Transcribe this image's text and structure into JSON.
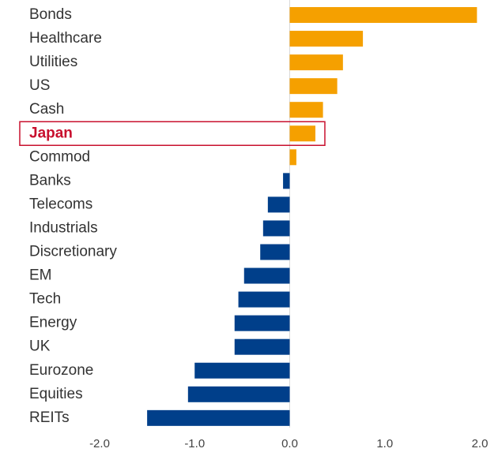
{
  "chart_data": {
    "type": "bar",
    "orientation": "horizontal",
    "title": "",
    "xlabel": "",
    "ylabel": "",
    "categories": [
      "Bonds",
      "Healthcare",
      "Utilities",
      "US",
      "Cash",
      "Japan",
      "Commod",
      "Banks",
      "Telecoms",
      "Industrials",
      "Discretionary",
      "EM",
      "Tech",
      "Energy",
      "UK",
      "Eurozone",
      "Equities",
      "REITs"
    ],
    "values": [
      1.97,
      0.77,
      0.56,
      0.5,
      0.35,
      0.27,
      0.07,
      -0.07,
      -0.23,
      -0.28,
      -0.31,
      -0.48,
      -0.54,
      -0.58,
      -0.58,
      -1.0,
      -1.07,
      -1.5
    ],
    "xlim": [
      -2.0,
      2.0
    ],
    "xticks": [
      -2.0,
      -1.0,
      0.0,
      1.0,
      2.0
    ],
    "xtick_labels": [
      "-2.0",
      "-1.0",
      "0.0",
      "1.0",
      "2.0"
    ],
    "grid": false,
    "highlighted_category": "Japan",
    "colors": {
      "positive": "#f5a000",
      "negative": "#003f8a",
      "highlight": "#c8102e",
      "zero_line": "#d9d9d9"
    }
  }
}
